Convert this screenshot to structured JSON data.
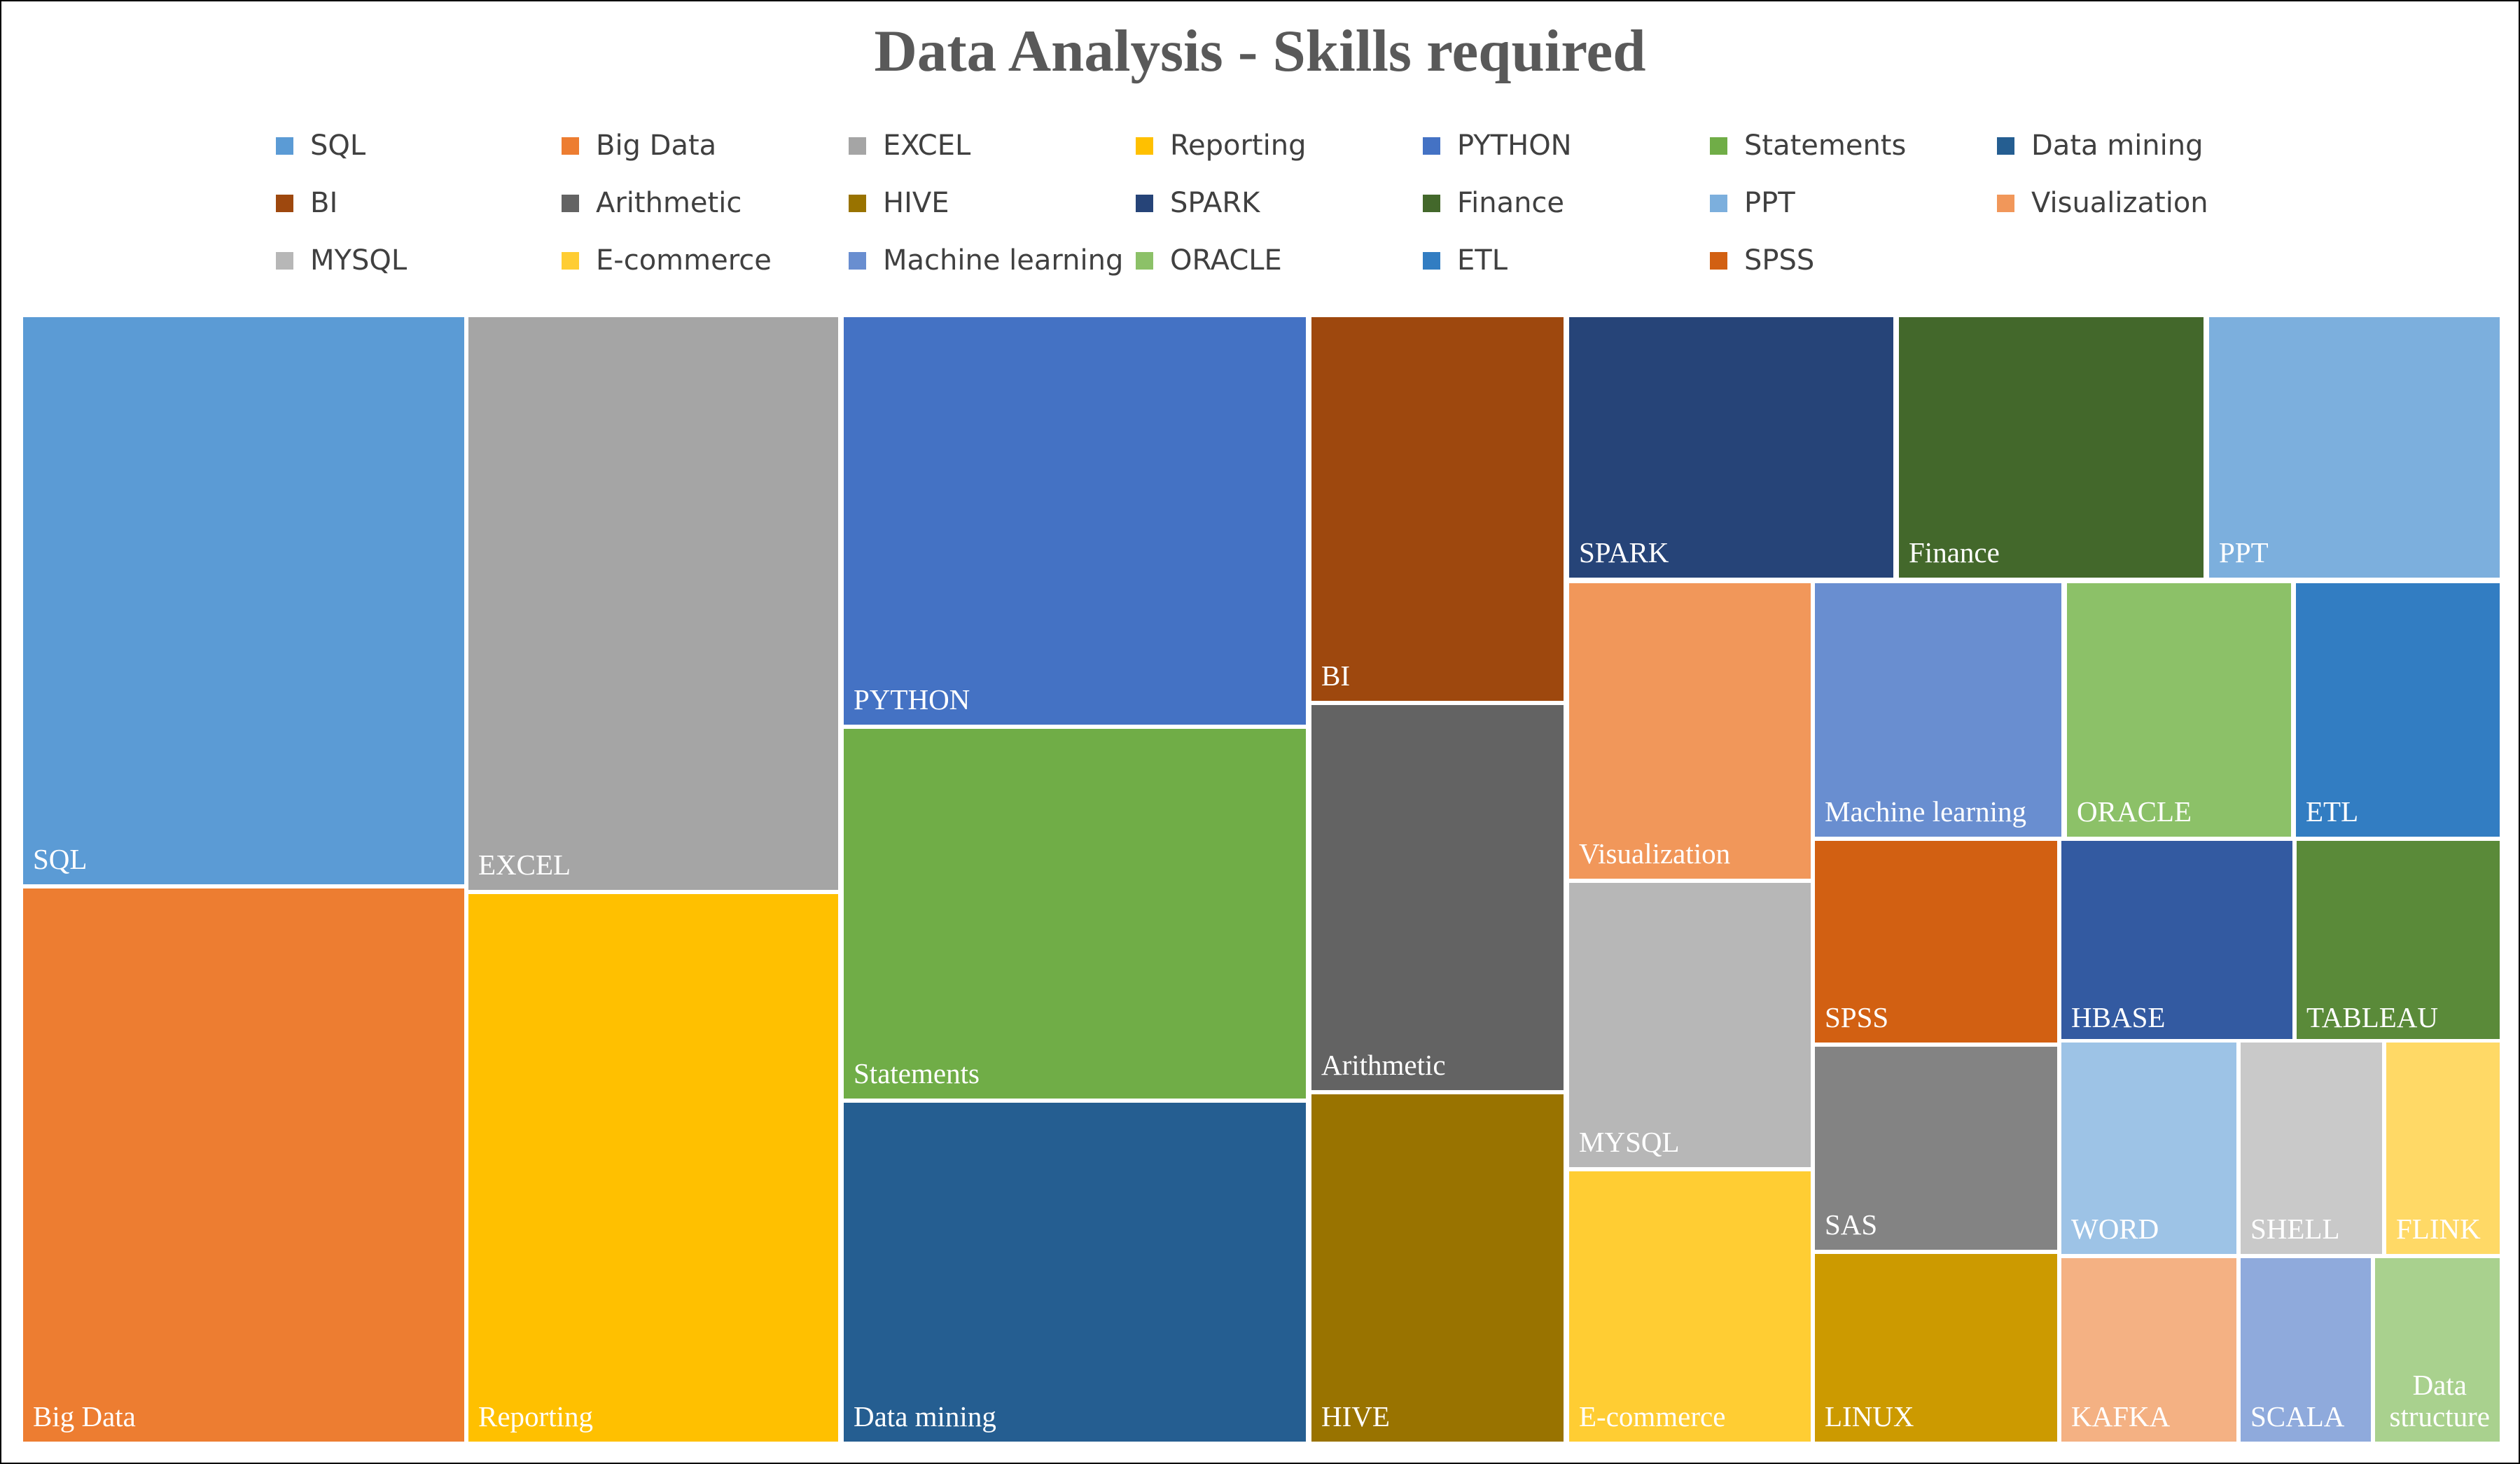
{
  "chart_data": {
    "type": "treemap",
    "title": "Data Analysis - Skills required",
    "legend_position": "top",
    "legend": [
      {
        "name": "SQL",
        "color": "#5B9BD5"
      },
      {
        "name": "Big Data",
        "color": "#ED7D31"
      },
      {
        "name": "EXCEL",
        "color": "#A5A5A5"
      },
      {
        "name": "Reporting",
        "color": "#FFC000"
      },
      {
        "name": "PYTHON",
        "color": "#4472C4"
      },
      {
        "name": "Statements",
        "color": "#70AD47"
      },
      {
        "name": "Data mining",
        "color": "#255E91"
      },
      {
        "name": "BI",
        "color": "#9E480E"
      },
      {
        "name": "Arithmetic",
        "color": "#636363"
      },
      {
        "name": "HIVE",
        "color": "#997300"
      },
      {
        "name": "SPARK",
        "color": "#264478"
      },
      {
        "name": "Finance",
        "color": "#43682B"
      },
      {
        "name": "PPT",
        "color": "#7CAFDD"
      },
      {
        "name": "Visualization",
        "color": "#F1975A"
      },
      {
        "name": "MYSQL",
        "color": "#B7B7B7"
      },
      {
        "name": "E-commerce",
        "color": "#FFCD33"
      },
      {
        "name": "Machine learning",
        "color": "#698ED0"
      },
      {
        "name": "ORACLE",
        "color": "#8CC168"
      },
      {
        "name": "ETL",
        "color": "#327DC2"
      },
      {
        "name": "SPSS",
        "color": "#D26012"
      }
    ],
    "tiles": [
      {
        "name": "SQL",
        "value": 27.9,
        "color": "#5B9BD5"
      },
      {
        "name": "Big Data",
        "value": 27.5,
        "color": "#ED7D31"
      },
      {
        "name": "EXCEL",
        "value": 20.0,
        "color": "#A5A5A5"
      },
      {
        "name": "Reporting",
        "value": 19.9,
        "color": "#FFC000"
      },
      {
        "name": "PYTHON",
        "value": 18.5,
        "color": "#4472C4"
      },
      {
        "name": "Statements",
        "value": 16.8,
        "color": "#70AD47"
      },
      {
        "name": "Data mining",
        "value": 16.4,
        "color": "#255E91"
      },
      {
        "name": "BI",
        "value": 9.6,
        "color": "#9E480E"
      },
      {
        "name": "Arithmetic",
        "value": 9.6,
        "color": "#636363"
      },
      {
        "name": "HIVE",
        "value": 8.8,
        "color": "#997300"
      },
      {
        "name": "SPARK",
        "value": 8.3,
        "color": "#264478"
      },
      {
        "name": "Finance",
        "value": 7.8,
        "color": "#43682B"
      },
      {
        "name": "PPT",
        "value": 7.4,
        "color": "#7CAFDD"
      },
      {
        "name": "Visualization",
        "value": 5.7,
        "color": "#F1975A"
      },
      {
        "name": "MYSQL",
        "value": 5.4,
        "color": "#B7B7B7"
      },
      {
        "name": "E-commerce",
        "value": 5.3,
        "color": "#FFCD33"
      },
      {
        "name": "Machine learning",
        "value": 5.0,
        "color": "#698ED0"
      },
      {
        "name": "ORACLE",
        "value": 4.6,
        "color": "#8CC168"
      },
      {
        "name": "ETL",
        "value": 4.1,
        "color": "#327DC2"
      },
      {
        "name": "SPSS",
        "value": 4.1,
        "color": "#D26012"
      },
      {
        "name": "HBASE",
        "value": 3.7,
        "color": "#335AA1"
      },
      {
        "name": "TABLEAU",
        "value": 3.2,
        "color": "#5A8A39"
      },
      {
        "name": "SAS",
        "value": 3.3,
        "color": "#838383"
      },
      {
        "name": "LINUX",
        "value": 3.2,
        "color": "#CC9A00"
      },
      {
        "name": "WORD",
        "value": 2.9,
        "color": "#9DC3E6"
      },
      {
        "name": "SHELL",
        "value": 2.3,
        "color": "#C9C9C9"
      },
      {
        "name": "FLINK",
        "value": 2.1,
        "color": "#FFD966"
      },
      {
        "name": "KAFKA",
        "value": 2.3,
        "color": "#F4B183"
      },
      {
        "name": "SCALA",
        "value": 1.7,
        "color": "#8FAADC"
      },
      {
        "name": "Data\nstructure",
        "value": 1.6,
        "color": "#A9D18E"
      }
    ]
  }
}
